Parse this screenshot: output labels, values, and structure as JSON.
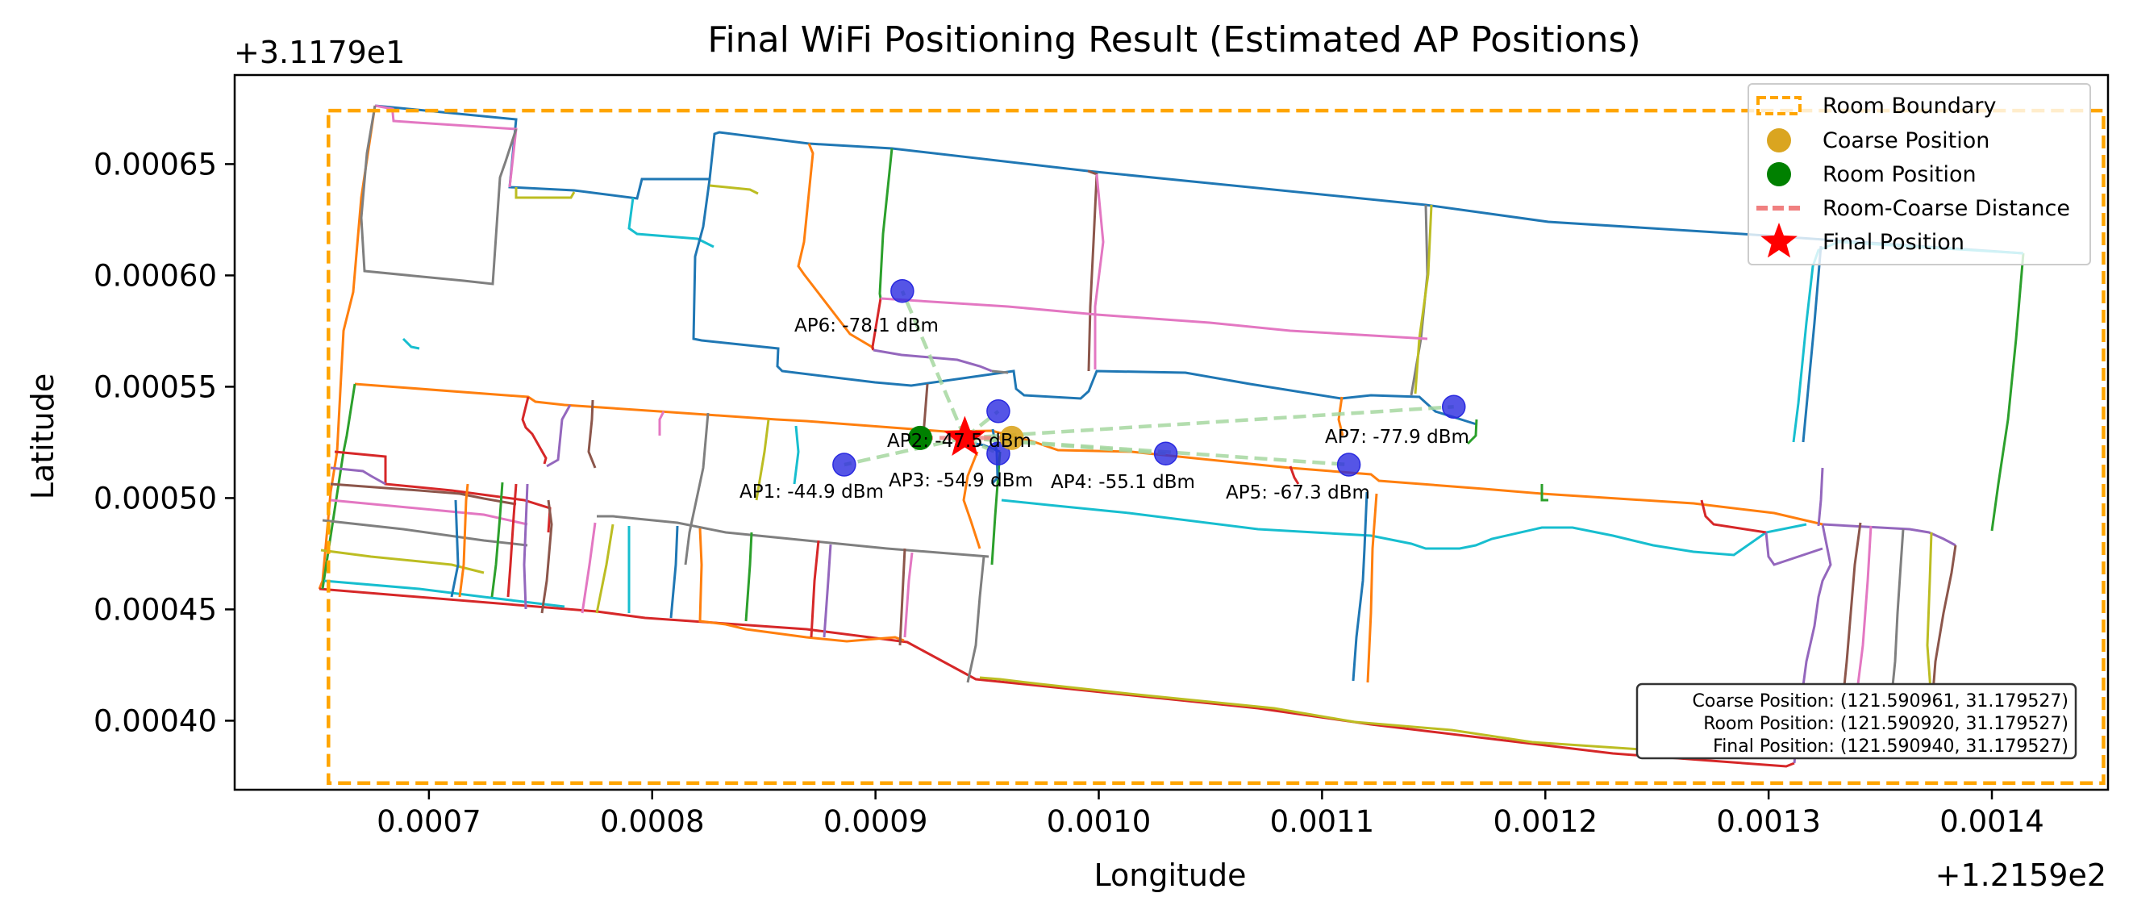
{
  "colors": {
    "boundary": "#ffa500",
    "coarse": "#daa520",
    "room": "#008000",
    "distance": "#f08080",
    "final": "#ff0000",
    "ap": "#2a2ae0",
    "link": "#a6d8a0",
    "walls": [
      "#1f77b4",
      "#ff7f0e",
      "#2ca02c",
      "#d62728",
      "#9467bd",
      "#8c564b",
      "#e377c2",
      "#7f7f7f",
      "#bcbd22",
      "#17becf"
    ]
  },
  "chart_data": {
    "type": "scatter",
    "title": "Final WiFi Positioning Result (Estimated AP Positions)",
    "xlabel": "Longitude",
    "ylabel": "Latitude",
    "x_offset_label": "+1.2159e2",
    "y_offset_label": "+3.1179e1",
    "xlim": [
      0.000613,
      0.001452
    ],
    "ylim": [
      0.000369,
      0.00069
    ],
    "xticks": [
      0.0007,
      0.0008,
      0.0009,
      0.001,
      0.0011,
      0.0012,
      0.0013,
      0.0014
    ],
    "xtick_labels": [
      "0.0007",
      "0.0008",
      "0.0009",
      "0.0010",
      "0.0011",
      "0.0012",
      "0.0013",
      "0.0014"
    ],
    "yticks": [
      0.0004,
      0.00045,
      0.0005,
      0.00055,
      0.0006,
      0.00065
    ],
    "ytick_labels": [
      "0.00040",
      "0.00045",
      "0.00050",
      "0.00055",
      "0.00060",
      "0.00065"
    ],
    "grid": false,
    "legend_placement": "top-right",
    "legend": [
      "Room Boundary",
      "Coarse Position",
      "Room Position",
      "Room-Coarse Distance",
      "Final Position"
    ],
    "room_boundary": {
      "x0": 0.000655,
      "x1": 0.00145,
      "y0": 0.000372,
      "y1": 0.000674
    },
    "coarse_position": {
      "x": 0.000961,
      "y": 0.000527
    },
    "room_position": {
      "x": 0.00092,
      "y": 0.000527
    },
    "final_position": {
      "x": 0.00094,
      "y": 0.000527
    },
    "access_points": [
      {
        "label": "AP1: -44.9 dBm",
        "x": 0.000886,
        "y": 0.000515
      },
      {
        "label": "AP2: -47.5 dBm",
        "x": 0.000955,
        "y": 0.00052
      },
      {
        "label": "AP3: -54.9 dBm",
        "x": 0.000955,
        "y": 0.000539
      },
      {
        "label": "AP4: -55.1 dBm",
        "x": 0.00103,
        "y": 0.00052
      },
      {
        "label": "AP5: -67.3 dBm",
        "x": 0.001112,
        "y": 0.000515
      },
      {
        "label": "AP6: -78.1 dBm",
        "x": 0.000912,
        "y": 0.000593
      },
      {
        "label": "AP7: -77.9 dBm",
        "x": 0.001159,
        "y": 0.000541
      }
    ],
    "info_box": [
      "Coarse Position: (121.590961, 31.179527)",
      "Room Position: (121.590920, 31.179527)",
      "Final Position: (121.590940, 31.179527)"
    ]
  }
}
